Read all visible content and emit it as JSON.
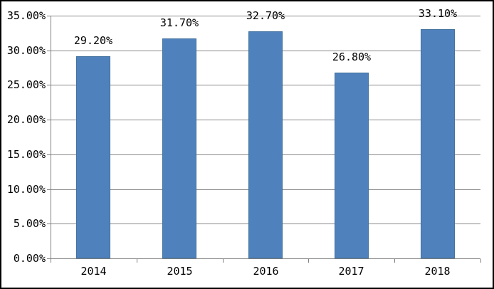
{
  "chart_data": {
    "type": "bar",
    "title": "",
    "xlabel": "",
    "ylabel": "",
    "categories": [
      "2014",
      "2015",
      "2016",
      "2017",
      "2018"
    ],
    "values": [
      29.2,
      31.7,
      32.7,
      26.8,
      33.1
    ],
    "data_labels": [
      "29.20%",
      "31.70%",
      "32.70%",
      "26.80%",
      "33.10%"
    ],
    "ylim": [
      0,
      35
    ],
    "ytick_step": 5,
    "ytick_labels": [
      "0.00%",
      "5.00%",
      "10.00%",
      "15.00%",
      "20.00%",
      "25.00%",
      "30.00%",
      "35.00%"
    ],
    "grid": true,
    "legend": false,
    "colors": {
      "bar_fill": "#4F81BD",
      "bar_edge": "#41709C",
      "gridline": "#898989",
      "axis": "#808080",
      "text": "#000000",
      "background": "#FFFFFF",
      "frame_border": "#000000"
    }
  }
}
